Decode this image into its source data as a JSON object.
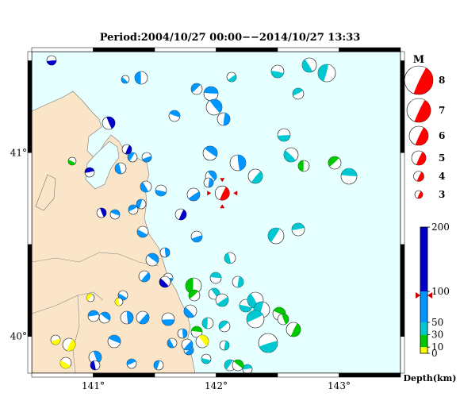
{
  "title": "Period:2004/10/27 00:00−−2014/10/27 13:33",
  "map": {
    "lon_ticks": [
      {
        "label": "141°",
        "lon": 141.0
      },
      {
        "label": "142°",
        "lon": 142.0
      },
      {
        "label": "143°",
        "lon": 143.0
      }
    ],
    "lat_ticks": [
      {
        "label": "41°",
        "lat": 41.0
      },
      {
        "label": "40°",
        "lat": 40.0
      }
    ],
    "extent": {
      "lon": [
        140.5,
        143.5
      ],
      "lat": [
        39.8,
        41.55
      ]
    },
    "colors": {
      "sea": "#e6ffff",
      "land": "#fbe5c8",
      "main_event": "#ff0000"
    }
  },
  "magnitude_legend": {
    "label": "M",
    "items": [
      {
        "label": "8",
        "value": 8
      },
      {
        "label": "7",
        "value": 7
      },
      {
        "label": "6",
        "value": 6
      },
      {
        "label": "5",
        "value": 5
      },
      {
        "label": "4",
        "value": 4
      },
      {
        "label": "3",
        "value": 3
      }
    ]
  },
  "depth_scale": {
    "unit_label": "Depth(km)",
    "ticks": [
      "200",
      "100",
      "50",
      "30",
      "10",
      "0"
    ],
    "marker_depth": 100,
    "colors": [
      "#ffff00",
      "#00c800",
      "#00c8d2",
      "#0096ff",
      "#0000c8"
    ]
  },
  "main_event": {
    "lon": 142.05,
    "lat": 40.78,
    "mag": 5.8
  }
}
